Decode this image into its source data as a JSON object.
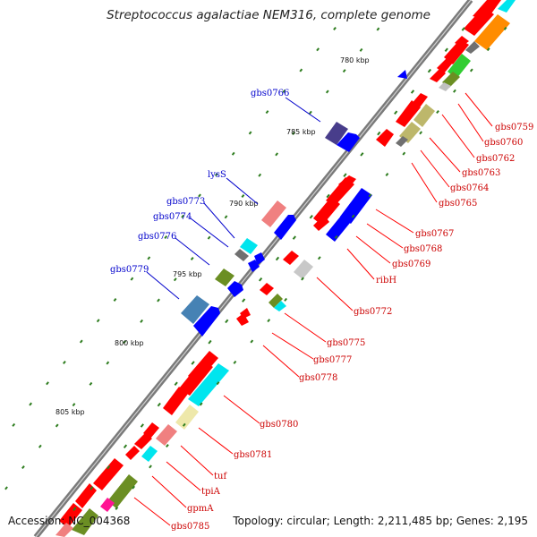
{
  "title": "Streptococcus agalactiae NEM316, complete genome",
  "footer": {
    "accession": "Accession: NC_004368",
    "summary": "Topology: circular; Length: 2,211,485 bp; Genes: 2,195"
  },
  "colors": {
    "backbone": "#7a7a7a",
    "tick_dot": "#2e7d1f",
    "forward_label": "#0000cc",
    "reverse_label": "#cc0000",
    "feature_red": "#ff0000",
    "feature_blue": "#0000ff",
    "feature_cyan": "#00e5ee",
    "feature_olive": "#6b8e23",
    "feature_khaki": "#bdb76b",
    "feature_pink": "#f08080",
    "feature_orange": "#ff8c00"
  },
  "kbp_ticks": [
    "780 kbp",
    "785 kbp",
    "790 kbp",
    "795 kbp",
    "800 kbp",
    "805 kbp"
  ],
  "forward_labels": [
    "gbs0766",
    "lysS",
    "gbs0773",
    "gbs0774",
    "gbs0776",
    "gbs0779"
  ],
  "reverse_labels": [
    "gbs0759",
    "gbs0760",
    "gbs0762",
    "gbs0763",
    "gbs0764",
    "gbs0765",
    "gbs0767",
    "gbs0768",
    "gbs0769",
    "ribH",
    "gbs0772",
    "gbs0775",
    "gbs0777",
    "gbs0778",
    "gbs0780",
    "gbs0781",
    "tuf",
    "tpiA",
    "gpmA",
    "gbs0785"
  ]
}
